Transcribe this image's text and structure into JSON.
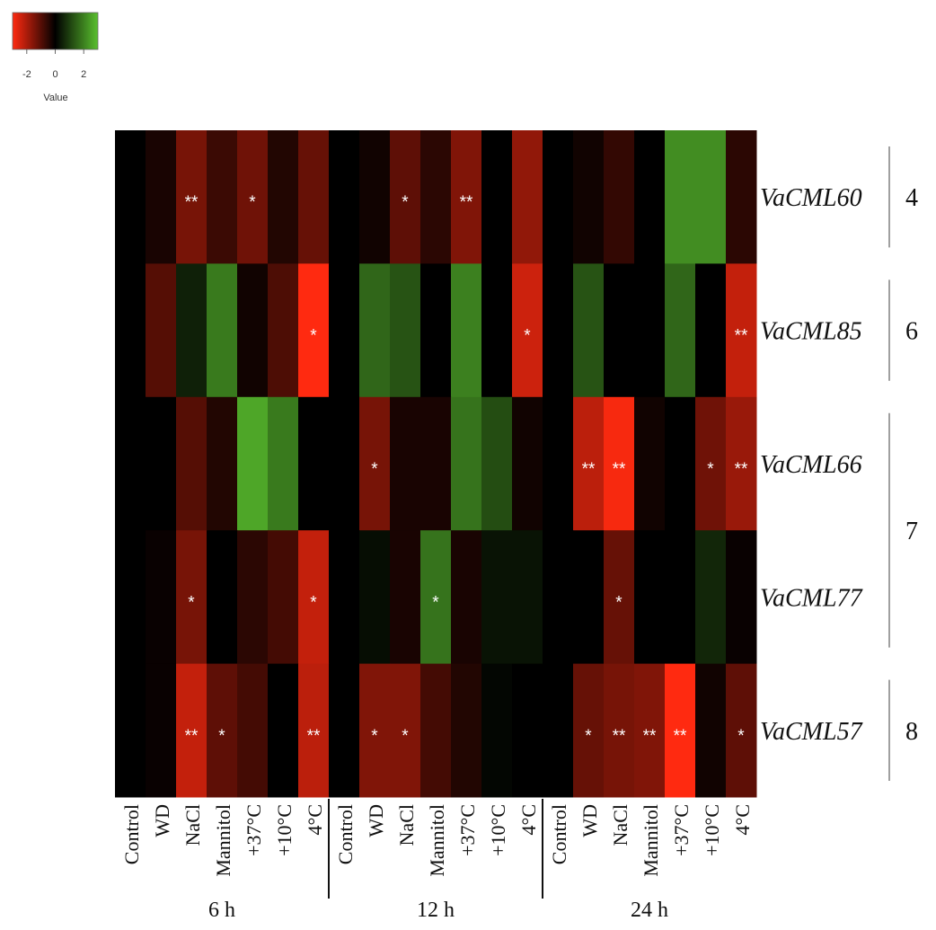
{
  "chart_data": {
    "type": "heatmap",
    "color_key": {
      "low_color": "#ff2a10",
      "mid_color": "#000000",
      "high_color": "#5ac02e",
      "ticks": [
        "-2",
        "0",
        "2"
      ],
      "label": "Value",
      "range": [
        -3,
        3
      ]
    },
    "columns": [
      "Control",
      "WD",
      "NaCl",
      "Mannitol",
      "+37°C",
      "+10°C",
      "4°C",
      "Control",
      "WD",
      "NaCl",
      "Mannitol",
      "+37°C",
      "+10°C",
      "4°C",
      "Control",
      "WD",
      "NaCl",
      "Mannitol",
      "+37°C",
      "+10°C",
      "4°C"
    ],
    "time_groups": [
      "6 h",
      "12 h",
      "24 h"
    ],
    "rows": [
      "VaCML60",
      "VaCML85",
      "VaCML66",
      "VaCML77",
      "VaCML57"
    ],
    "values": [
      [
        0,
        -0.3,
        -1.4,
        -0.7,
        -1.3,
        -0.4,
        -1.2,
        0,
        -0.2,
        -1.1,
        -0.5,
        -1.5,
        0,
        -1.7,
        0,
        -0.2,
        -0.6,
        0,
        2.2,
        2.2,
        -0.5
      ],
      [
        0,
        -1.0,
        0.5,
        1.9,
        -0.2,
        -0.9,
        -3.0,
        0,
        1.6,
        1.3,
        0,
        2.0,
        0,
        -2.4,
        0,
        1.3,
        0,
        0,
        1.6,
        0,
        -2.3
      ],
      [
        0,
        0,
        -1.0,
        -0.4,
        2.6,
        1.9,
        0,
        0,
        -1.4,
        -0.3,
        -0.3,
        1.8,
        1.2,
        -0.2,
        0,
        -2.2,
        -2.9,
        -0.2,
        0,
        -1.3,
        -1.8
      ],
      [
        0,
        -0.1,
        -1.4,
        0,
        -0.5,
        -0.8,
        -2.3,
        0,
        0.2,
        -0.3,
        1.8,
        -0.3,
        0.3,
        0.3,
        0,
        0,
        -1.2,
        0,
        0,
        0.6,
        -0.1
      ],
      [
        0,
        -0.1,
        -2.3,
        -1.1,
        -0.8,
        0,
        -2.2,
        0,
        -1.5,
        -1.5,
        -0.8,
        -0.4,
        0.1,
        0,
        0,
        -1.2,
        -1.4,
        -1.5,
        -3.0,
        -0.2,
        -1.1
      ]
    ],
    "significance": [
      [
        "",
        "",
        "**",
        "",
        "*",
        "",
        "",
        "",
        "",
        "*",
        "",
        "**",
        "",
        "",
        "",
        "",
        "",
        "",
        "",
        "",
        ""
      ],
      [
        "",
        "",
        "",
        "",
        "",
        "",
        "*",
        "",
        "",
        "",
        "",
        "",
        "",
        "*",
        "",
        "",
        "",
        "",
        "",
        "",
        "**"
      ],
      [
        "",
        "",
        "",
        "",
        "",
        "",
        "",
        "",
        "*",
        "",
        "",
        "",
        "",
        "",
        "",
        "**",
        "**",
        "",
        "",
        "*",
        "**"
      ],
      [
        "",
        "",
        "*",
        "",
        "",
        "",
        "*",
        "",
        "",
        "",
        "*",
        "",
        "",
        "",
        "",
        "",
        "*",
        "",
        "",
        "",
        ""
      ],
      [
        "",
        "",
        "**",
        "*",
        "",
        "",
        "**",
        "",
        "*",
        "*",
        "",
        "",
        "",
        "",
        "",
        "*",
        "**",
        "**",
        "**",
        "",
        "*"
      ]
    ],
    "clusters": [
      {
        "label": "4",
        "row_start": 0,
        "row_end": 0
      },
      {
        "label": "6",
        "row_start": 1,
        "row_end": 1
      },
      {
        "label": "7",
        "row_start": 2,
        "row_end": 3
      },
      {
        "label": "8",
        "row_start": 4,
        "row_end": 4
      }
    ]
  }
}
